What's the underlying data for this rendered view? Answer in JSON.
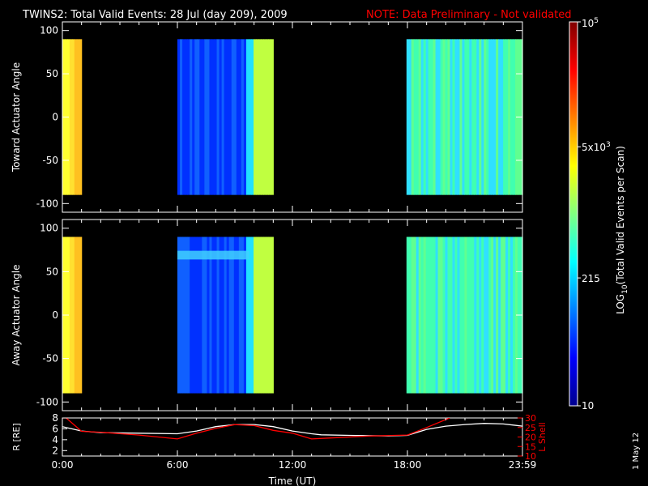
{
  "title": "TWINS2: Total Valid Events: 28 Jul (day 209), 2009",
  "note": "NOTE: Data Preliminary - Not validated",
  "footer_date": "1 May 12",
  "colors": {
    "background": "#000000",
    "axes": "#ffffff",
    "note": "#ff0000",
    "r_line": "#ffffff",
    "l_shell_line": "#ff0000",
    "colormap": [
      "#00008f",
      "#0000ff",
      "#0080ff",
      "#00ffff",
      "#80ff80",
      "#ffff00",
      "#ff8000",
      "#ff0000",
      "#800000"
    ]
  },
  "chart_data": [
    {
      "type": "heatmap",
      "panel": "toward",
      "ylabel": "Toward Actuator Angle",
      "xlim": [
        0,
        24
      ],
      "ylim": [
        -110,
        110
      ],
      "y_ticks": [
        100,
        50,
        0,
        -50,
        -100
      ],
      "y_tick_labels": [
        "100",
        "50",
        "0",
        "-50",
        "-100"
      ],
      "data_y_range": [
        -90,
        90
      ],
      "segments": [
        {
          "start_hr": 0.0,
          "end_hr": 1.0,
          "level_profile": "high",
          "colors": [
            "#ffff30",
            "#ffe030",
            "#ffc020"
          ]
        },
        {
          "start_hr": 6.0,
          "end_hr": 11.0,
          "level_profile": "low_rising",
          "colors": [
            "#0030ff",
            "#1060ff",
            "#20e0ff",
            "#c0ff40"
          ]
        },
        {
          "start_hr": 17.95,
          "end_hr": 24.0,
          "level_profile": "mid",
          "colors": [
            "#40ffb0",
            "#30e0ff",
            "#60ff90"
          ]
        }
      ]
    },
    {
      "type": "heatmap",
      "panel": "away",
      "ylabel": "Away Actuator Angle",
      "xlim": [
        0,
        24
      ],
      "ylim": [
        -110,
        110
      ],
      "y_ticks": [
        100,
        50,
        0,
        -50,
        -100
      ],
      "y_tick_labels": [
        "100",
        "50",
        "0",
        "-50",
        "-100"
      ],
      "data_y_range": [
        -90,
        90
      ],
      "segments": [
        {
          "start_hr": 0.0,
          "end_hr": 1.0,
          "level_profile": "high",
          "colors": [
            "#ffff30",
            "#ffe030",
            "#ffc020"
          ]
        },
        {
          "start_hr": 6.0,
          "end_hr": 11.0,
          "level_profile": "low_rising",
          "colors": [
            "#0030ff",
            "#1060ff",
            "#20e0ff",
            "#c0ff40"
          ]
        },
        {
          "start_hr": 17.95,
          "end_hr": 24.0,
          "level_profile": "mid",
          "colors": [
            "#40ffb0",
            "#30e0ff",
            "#60ff90"
          ]
        }
      ]
    },
    {
      "type": "line",
      "panel": "orbit",
      "ylabel_left": "R [RE]",
      "ylabel_right": "L Shell",
      "xlabel": "Time (UT)",
      "xlim": [
        0,
        24
      ],
      "x_ticks": [
        0,
        6,
        12,
        18,
        24
      ],
      "x_tick_labels": [
        "0:00",
        "6:00",
        "12:00",
        "18:00",
        "23:59"
      ],
      "ylim_left": [
        1,
        8
      ],
      "y_ticks_left": [
        2,
        4,
        6,
        8
      ],
      "y_tick_labels_left": [
        "2",
        "4",
        "6",
        "8"
      ],
      "ylim_right": [
        10,
        30
      ],
      "y_ticks_right": [
        10,
        15,
        20,
        25,
        30
      ],
      "y_tick_labels_right": [
        "10",
        "15",
        "20",
        "25",
        "30"
      ],
      "series": [
        {
          "name": "R [RE]",
          "axis": "left",
          "x": [
            0,
            1,
            2,
            4,
            6,
            7,
            8,
            9,
            10,
            11,
            12,
            13,
            13.5,
            15,
            17,
            18,
            19,
            20,
            21,
            22,
            23,
            24
          ],
          "y": [
            6.4,
            5.6,
            5.3,
            5.2,
            5.1,
            5.6,
            6.4,
            6.8,
            6.8,
            6.4,
            5.6,
            5.1,
            4.9,
            4.8,
            4.7,
            4.8,
            5.9,
            6.5,
            6.8,
            7.0,
            6.9,
            6.5
          ]
        },
        {
          "name": "L Shell",
          "axis": "right",
          "x": [
            0,
            0.2,
            1,
            2,
            4,
            6,
            7,
            8,
            9,
            10,
            11,
            12,
            13,
            14,
            16,
            18,
            19,
            20.2
          ],
          "y": [
            30,
            30,
            23,
            22.5,
            21,
            19,
            22,
            24.5,
            26.5,
            26,
            23.5,
            22,
            19,
            19.5,
            20.5,
            21,
            25,
            30
          ]
        }
      ]
    }
  ],
  "colorbar": {
    "label": "LOG10(Total Valid Events per Scan)",
    "label_main": "LOG",
    "label_sub": "10",
    "label_rest": "(Total Valid Events per Scan)",
    "scale": "log",
    "range": [
      10,
      100000
    ],
    "ticks": [
      {
        "value": 10,
        "label": "10"
      },
      {
        "value": 215,
        "label": "215"
      },
      {
        "value": 5000,
        "label": "5x10",
        "exp": "3"
      },
      {
        "value": 100000,
        "label": "10",
        "exp": "5"
      }
    ]
  }
}
